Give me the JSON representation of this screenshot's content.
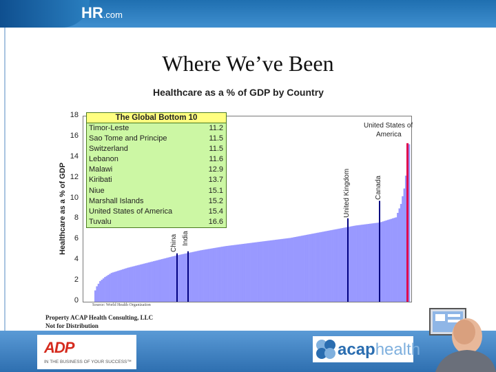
{
  "header": {
    "logo_main": "HR",
    "logo_suffix": ".com"
  },
  "slide": {
    "title": "Where We’ve Been"
  },
  "chart_data": {
    "type": "bar",
    "title": "Healthcare as a % of GDP by Country",
    "ylabel": "Healthcare as a % of GDP",
    "xlabel": "",
    "ylim": [
      0,
      18
    ],
    "yticks": [
      "0",
      "2",
      "4",
      "6",
      "8",
      "10",
      "12",
      "14",
      "16",
      "18"
    ],
    "bar_color": "#9999ff",
    "highlight_color": "#000080",
    "us_color": "#e0004d",
    "profile_knots": [
      [
        0,
        1.1
      ],
      [
        1,
        1.5
      ],
      [
        3,
        2.0
      ],
      [
        6,
        2.4
      ],
      [
        10,
        2.8
      ],
      [
        20,
        3.3
      ],
      [
        35,
        3.9
      ],
      [
        50,
        4.5
      ],
      [
        65,
        5.0
      ],
      [
        80,
        5.4
      ],
      [
        100,
        5.8
      ],
      [
        120,
        6.2
      ],
      [
        140,
        6.8
      ],
      [
        160,
        7.4
      ],
      [
        175,
        7.7
      ],
      [
        185,
        8.2
      ],
      [
        188,
        9.5
      ],
      [
        190,
        11.0
      ],
      [
        192,
        13.5
      ],
      [
        193,
        15.3
      ]
    ],
    "bar_count": 194,
    "highlighted": [
      {
        "name": "China",
        "value": 4.7
      },
      {
        "name": "India",
        "value": 4.9
      },
      {
        "name": "United Kingdom",
        "value": 8.1
      },
      {
        "name": "Canada",
        "value": 9.8
      },
      {
        "name": "United States of America",
        "value": 15.4
      }
    ],
    "table": {
      "title": "The Global Bottom 10",
      "rows": [
        {
          "country": "Timor-Leste",
          "value": "11.2"
        },
        {
          "country": "Sao Tome and Principe",
          "value": "11.5"
        },
        {
          "country": "Switzerland",
          "value": "11.5"
        },
        {
          "country": "Lebanon",
          "value": "11.6"
        },
        {
          "country": "Malawi",
          "value": "12.9"
        },
        {
          "country": "Kiribati",
          "value": "13.7"
        },
        {
          "country": "Niue",
          "value": "15.1"
        },
        {
          "country": "Marshall Islands",
          "value": "15.2"
        },
        {
          "country": "United States of America",
          "value": "15.4"
        },
        {
          "country": "Tuvalu",
          "value": "16.6"
        }
      ]
    },
    "annotations": {
      "china": "China",
      "india": "India",
      "uk": "United Kingdom",
      "canada": "Canada",
      "usa_line1": "United States of",
      "usa_line2": "America"
    },
    "source": "Source: World Health Organization"
  },
  "footer": {
    "property_line1": "Property ACAP Health Consulting, LLC",
    "property_line2": "Not for Distribution",
    "adp_logo": "ADP",
    "adp_tagline": "IN THE BUSINESS OF YOUR SUCCESS™",
    "acap_logo_a": "acap",
    "acap_logo_b": "health"
  }
}
